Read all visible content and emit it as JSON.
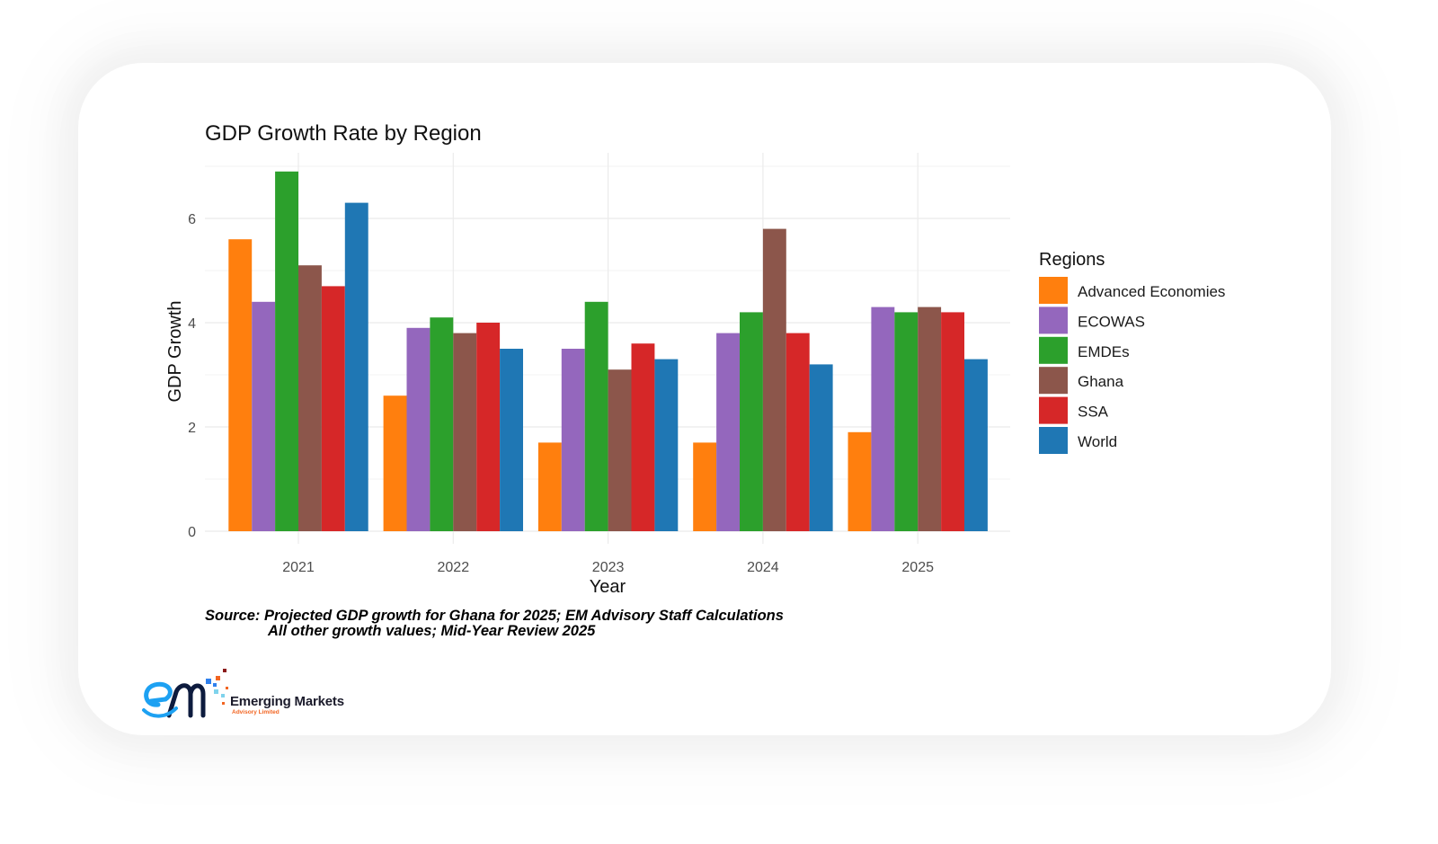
{
  "chart_data": {
    "type": "bar",
    "title": "GDP Growth Rate by Region",
    "xlabel": "Year",
    "ylabel": "GDP Growth",
    "categories": [
      "2021",
      "2022",
      "2023",
      "2024",
      "2025"
    ],
    "ylim": [
      0,
      7.2
    ],
    "yticks": [
      0,
      2,
      4,
      6
    ],
    "grid": true,
    "legend": {
      "title": "Regions",
      "position": "right"
    },
    "series": [
      {
        "name": "Advanced Economies",
        "color": "#ff7f0e",
        "values": [
          5.6,
          2.6,
          1.7,
          1.7,
          1.9
        ]
      },
      {
        "name": "ECOWAS",
        "color": "#9467bd",
        "values": [
          4.4,
          3.9,
          3.5,
          3.8,
          4.3
        ]
      },
      {
        "name": "EMDEs",
        "color": "#2ca02c",
        "values": [
          6.9,
          4.1,
          4.4,
          4.2,
          4.2
        ]
      },
      {
        "name": "Ghana",
        "color": "#8c564b",
        "values": [
          5.1,
          3.8,
          3.1,
          5.8,
          4.3
        ]
      },
      {
        "name": "SSA",
        "color": "#d62728",
        "values": [
          4.7,
          4.0,
          3.6,
          3.8,
          4.2
        ]
      },
      {
        "name": "World",
        "color": "#1f77b4",
        "values": [
          6.3,
          3.5,
          3.3,
          3.2,
          3.3
        ]
      }
    ],
    "caption_lines": [
      "Source: Projected GDP growth for Ghana for 2025; EM Advisory Staff Calculations",
      "All other growth values; Mid-Year Review 2025"
    ]
  },
  "logo": {
    "name": "Emerging Markets",
    "subtitle": "Advisory Limited"
  }
}
